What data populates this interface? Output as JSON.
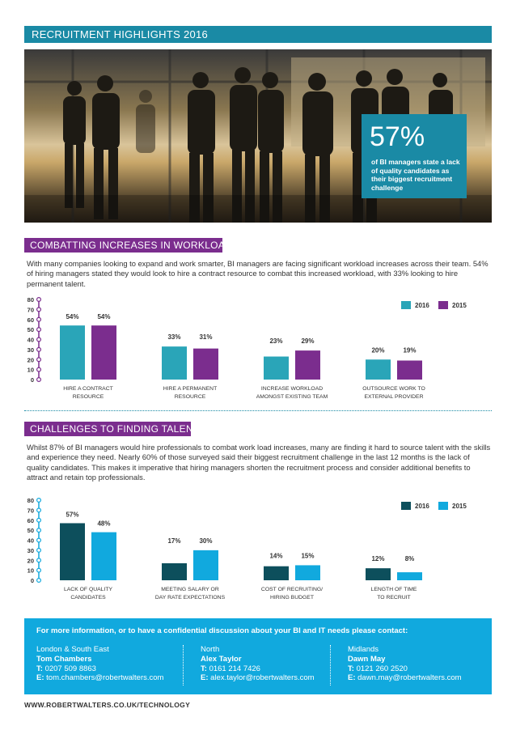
{
  "header": {
    "title": "RECRUITMENT HIGHLIGHTS 2016"
  },
  "hero": {
    "stat_value": "57%",
    "stat_text": "of BI managers state a lack of quality candidates as their biggest recruitment challenge"
  },
  "section1": {
    "title": "COMBATTING INCREASES IN WORKLOAD",
    "paragraph": "With many companies looking to expand and work smarter, BI managers are facing significant workload increases across their team. 54% of hiring managers stated they would look to hire a contract resource to combat this increased workload, with 33% looking to hire permanent talent.",
    "heading_color": "#7b2d8e"
  },
  "section2": {
    "title": "CHALLENGES TO FINDING TALENT",
    "paragraph": "Whilst 87% of BI managers would hire professionals to combat work load increases, many are finding it hard to source talent with the skills and experience they need. Nearly 60% of those surveyed said their biggest recruitment challenge in the last 12 months is the lack of quality candidates. This makes it imperative that hiring managers shorten the recruitment process and consider additional benefits to attract and retain top professionals.",
    "heading_color": "#7b2d8e"
  },
  "chart_data": [
    {
      "type": "bar",
      "categories": [
        [
          "HIRE A CONTRACT",
          "RESOURCE"
        ],
        [
          "HIRE A PERMANENT",
          "RESOURCE"
        ],
        [
          "INCREASE WORKLOAD",
          "AMONGST EXISTING TEAM"
        ],
        [
          "OUTSOURCE WORK TO",
          "EXTERNAL PROVIDER"
        ]
      ],
      "series": [
        {
          "name": "2016",
          "values": [
            54,
            33,
            23,
            20
          ],
          "color": "#2aa5b8"
        },
        {
          "name": "2015",
          "values": [
            54,
            31,
            29,
            19
          ],
          "color": "#7b2d8e"
        }
      ],
      "value_labels": [
        [
          "54%",
          "33%",
          "23%",
          "20%"
        ],
        [
          "54%",
          "31%",
          "29%",
          "19%"
        ]
      ],
      "yticks": [
        0,
        10,
        20,
        30,
        40,
        50,
        60,
        70,
        80
      ],
      "ylim": [
        0,
        80
      ],
      "axis_color": "#7b2d8e",
      "legend_position": "top-right"
    },
    {
      "type": "bar",
      "categories": [
        [
          "LACK OF QUALITY",
          "CANDIDATES"
        ],
        [
          "MEETING SALARY OR",
          "DAY RATE EXPECTATIONS"
        ],
        [
          "COST OF RECRUITING/",
          "HIRING BUDGET"
        ],
        [
          "LENGTH OF TIME",
          "TO RECRUIT"
        ]
      ],
      "series": [
        {
          "name": "2016",
          "values": [
            57,
            17,
            14,
            12
          ],
          "color": "#0d4f5c"
        },
        {
          "name": "2015",
          "values": [
            48,
            30,
            15,
            8
          ],
          "color": "#11a9de"
        }
      ],
      "value_labels": [
        [
          "57%",
          "17%",
          "14%",
          "12%"
        ],
        [
          "48%",
          "30%",
          "15%",
          "8%"
        ]
      ],
      "yticks": [
        0,
        10,
        20,
        30,
        40,
        50,
        60,
        70,
        80
      ],
      "ylim": [
        0,
        80
      ],
      "axis_color": "#11a9de",
      "legend_position": "top-right"
    }
  ],
  "contact": {
    "lead": "For more information, or to have a confidential discussion about your BI and IT needs please contact:",
    "offices": [
      {
        "region": "London & South East",
        "name": "Tom Chambers",
        "t_label": "T:",
        "phone": "0207 509 8863",
        "e_label": "E:",
        "email": "tom.chambers@robertwalters.com"
      },
      {
        "region": "North",
        "name": "Alex Taylor",
        "t_label": "T:",
        "phone": "0161 214 7426",
        "e_label": "E:",
        "email": "alex.taylor@robertwalters.com"
      },
      {
        "region": "Midlands",
        "name": "Dawn May",
        "t_label": "T:",
        "phone": "0121 260 2520",
        "e_label": "E:",
        "email": "dawn.may@robertwalters.com"
      }
    ]
  },
  "footer": {
    "url": "WWW.ROBERTWALTERS.CO.UK/TECHNOLOGY"
  }
}
